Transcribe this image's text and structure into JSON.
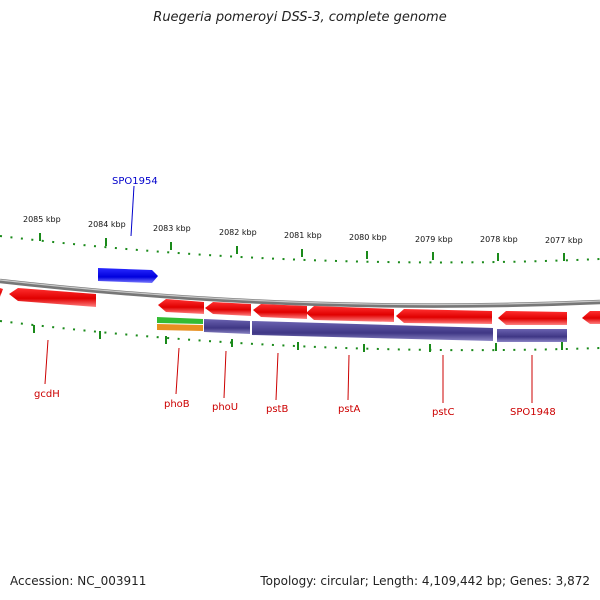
{
  "header": {
    "title": "Ruegeria pomeroyi DSS-3, complete genome"
  },
  "footer": {
    "accession": "Accession: NC_003911",
    "topology": "Topology: circular; Length: 4,109,442 bp; Genes: 3,872"
  },
  "colors": {
    "backbone": "#8c8c8c",
    "ticks": "#1a8a1a",
    "forward_gene": "#0000e6",
    "reverse_gene": "#e60000",
    "cds_feature": "#4a3f8c",
    "feature_green": "#33bb33",
    "feature_orange": "#e89020",
    "forward_label": "#0000cc",
    "reverse_label": "#cc0000"
  },
  "scale": {
    "labels": [
      "2085 kbp",
      "2084 kbp",
      "2083 kbp",
      "2082 kbp",
      "2081 kbp",
      "2080 kbp",
      "2079 kbp",
      "2078 kbp",
      "2077 kbp"
    ]
  },
  "genes": {
    "forward": [
      {
        "name": "SPO1954"
      }
    ],
    "reverse": [
      {
        "name": "gcdH"
      },
      {
        "name": "phoB"
      },
      {
        "name": "phoU"
      },
      {
        "name": "pstB"
      },
      {
        "name": "pstA"
      },
      {
        "name": "pstC"
      },
      {
        "name": "SPO1948"
      }
    ]
  }
}
